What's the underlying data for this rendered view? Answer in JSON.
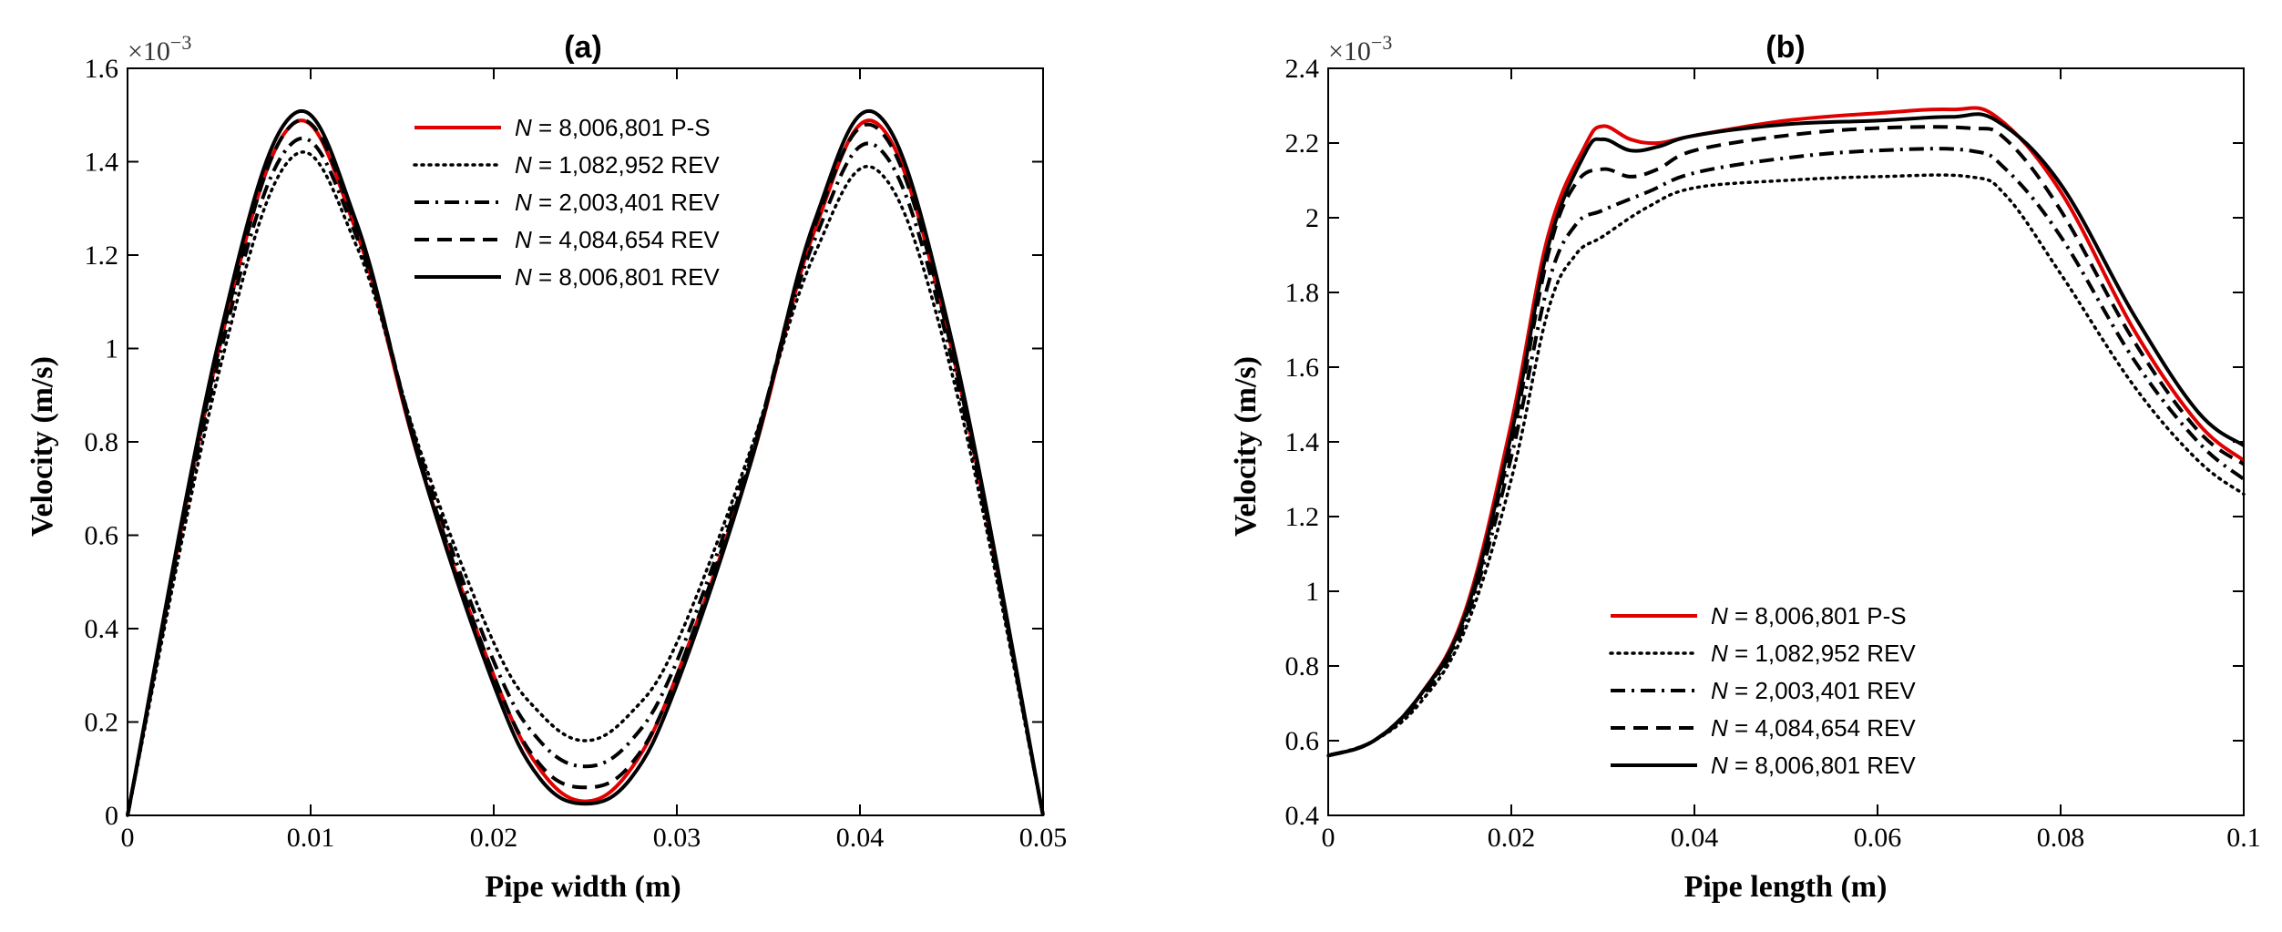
{
  "chart_data": [
    {
      "type": "line",
      "title": "(a)",
      "xlabel": "Pipe width (m)",
      "ylabel": "Velocity (m/s)",
      "y_multiplier": "×10",
      "y_multiplier_exp": "−3",
      "xlim": [
        0,
        0.05
      ],
      "ylim": [
        0,
        1.6
      ],
      "xticks": [
        0,
        0.01,
        0.02,
        0.03,
        0.04,
        0.05
      ],
      "xtick_labels": [
        "0",
        "0.01",
        "0.02",
        "0.03",
        "0.04",
        "0.05"
      ],
      "yticks": [
        0,
        0.2,
        0.4,
        0.6,
        0.8,
        1,
        1.2,
        1.4,
        1.6
      ],
      "ytick_labels": [
        "0",
        "0.2",
        "0.4",
        "0.6",
        "0.8",
        "1",
        "1.2",
        "1.4",
        "1.6"
      ],
      "legend_position": "top-center",
      "series": [
        {
          "name_italic": "N",
          "name_rest": " = 8,006,801 P-S",
          "color": "#e00000",
          "dash": "solid",
          "x": [
            0,
            0.005,
            0.009,
            0.0125,
            0.016,
            0.02,
            0.0225,
            0.025,
            0.0275,
            0.03,
            0.034,
            0.0375,
            0.041,
            0.045,
            0.05
          ],
          "y": [
            0,
            1.0,
            1.48,
            1.25,
            0.75,
            0.3,
            0.1,
            0.03,
            0.1,
            0.3,
            0.75,
            1.25,
            1.48,
            1.0,
            0
          ]
        },
        {
          "name_italic": "N",
          "name_rest": " = 1,082,952 REV",
          "color": "#000000",
          "dash": "dotted",
          "x": [
            0,
            0.005,
            0.009,
            0.0125,
            0.016,
            0.02,
            0.0225,
            0.025,
            0.0275,
            0.03,
            0.034,
            0.0375,
            0.041,
            0.045,
            0.05
          ],
          "y": [
            0,
            0.95,
            1.41,
            1.22,
            0.78,
            0.37,
            0.22,
            0.16,
            0.22,
            0.37,
            0.78,
            1.2,
            1.38,
            0.95,
            0
          ]
        },
        {
          "name_italic": "N",
          "name_rest": " = 2,003,401 REV",
          "color": "#000000",
          "dash": "dashdot",
          "x": [
            0,
            0.005,
            0.009,
            0.0125,
            0.016,
            0.02,
            0.0225,
            0.025,
            0.0275,
            0.03,
            0.034,
            0.0375,
            0.041,
            0.045,
            0.05
          ],
          "y": [
            0,
            0.98,
            1.44,
            1.24,
            0.77,
            0.33,
            0.16,
            0.105,
            0.16,
            0.33,
            0.77,
            1.23,
            1.43,
            0.98,
            0
          ]
        },
        {
          "name_italic": "N",
          "name_rest": " = 4,084,654 REV",
          "color": "#000000",
          "dash": "dashed",
          "x": [
            0,
            0.005,
            0.009,
            0.0125,
            0.016,
            0.02,
            0.0225,
            0.025,
            0.0275,
            0.03,
            0.034,
            0.0375,
            0.041,
            0.045,
            0.05
          ],
          "y": [
            0,
            1.0,
            1.48,
            1.26,
            0.76,
            0.3,
            0.11,
            0.06,
            0.11,
            0.3,
            0.76,
            1.26,
            1.47,
            1.0,
            0
          ]
        },
        {
          "name_italic": "N",
          "name_rest": " = 8,006,801 REV",
          "color": "#000000",
          "dash": "solid",
          "x": [
            0,
            0.005,
            0.009,
            0.0125,
            0.016,
            0.02,
            0.0225,
            0.025,
            0.0275,
            0.03,
            0.034,
            0.0375,
            0.041,
            0.045,
            0.05
          ],
          "y": [
            0,
            1.02,
            1.5,
            1.27,
            0.75,
            0.28,
            0.08,
            0.025,
            0.08,
            0.28,
            0.75,
            1.27,
            1.5,
            1.02,
            0
          ]
        }
      ]
    },
    {
      "type": "line",
      "title": "(b)",
      "xlabel": "Pipe length (m)",
      "ylabel": "Velocity (m/s)",
      "y_multiplier": "×10",
      "y_multiplier_exp": "−3",
      "xlim": [
        0,
        0.1
      ],
      "ylim": [
        0.4,
        2.4
      ],
      "xticks": [
        0,
        0.02,
        0.04,
        0.06,
        0.08,
        0.1
      ],
      "xtick_labels": [
        "0",
        "0.02",
        "0.04",
        "0.06",
        "0.08",
        "0.1"
      ],
      "yticks": [
        0.4,
        0.6,
        0.8,
        1,
        1.2,
        1.4,
        1.6,
        1.8,
        2,
        2.2,
        2.4
      ],
      "ytick_labels": [
        "0.4",
        "0.6",
        "0.8",
        "1",
        "1.2",
        "1.4",
        "1.6",
        "1.8",
        "2",
        "2.2",
        "2.4"
      ],
      "legend_position": "bottom-center",
      "series": [
        {
          "name_italic": "N",
          "name_rest": " = 8,006,801 P-S",
          "color": "#e00000",
          "dash": "solid",
          "x": [
            0,
            0.005,
            0.01,
            0.015,
            0.02,
            0.024,
            0.028,
            0.03,
            0.033,
            0.036,
            0.04,
            0.05,
            0.06,
            0.068,
            0.073,
            0.08,
            0.088,
            0.095,
            0.1
          ],
          "y": [
            0.56,
            0.6,
            0.72,
            0.95,
            1.45,
            1.95,
            2.19,
            2.245,
            2.21,
            2.2,
            2.22,
            2.26,
            2.28,
            2.29,
            2.27,
            2.07,
            1.7,
            1.45,
            1.35
          ]
        },
        {
          "name_italic": "N",
          "name_rest": " = 1,082,952 REV",
          "color": "#000000",
          "dash": "dotted",
          "x": [
            0,
            0.005,
            0.01,
            0.015,
            0.02,
            0.024,
            0.027,
            0.03,
            0.035,
            0.04,
            0.05,
            0.06,
            0.07,
            0.074,
            0.08,
            0.088,
            0.095,
            0.1
          ],
          "y": [
            0.56,
            0.6,
            0.7,
            0.9,
            1.3,
            1.75,
            1.9,
            1.95,
            2.03,
            2.08,
            2.1,
            2.11,
            2.11,
            2.06,
            1.85,
            1.55,
            1.35,
            1.26
          ]
        },
        {
          "name_italic": "N",
          "name_rest": " = 2,003,401 REV",
          "color": "#000000",
          "dash": "dashdot",
          "x": [
            0,
            0.005,
            0.01,
            0.015,
            0.02,
            0.024,
            0.027,
            0.03,
            0.035,
            0.04,
            0.05,
            0.06,
            0.07,
            0.074,
            0.08,
            0.088,
            0.095,
            0.1
          ],
          "y": [
            0.56,
            0.6,
            0.71,
            0.92,
            1.36,
            1.82,
            1.98,
            2.02,
            2.07,
            2.12,
            2.16,
            2.18,
            2.18,
            2.13,
            1.95,
            1.62,
            1.4,
            1.3
          ]
        },
        {
          "name_italic": "N",
          "name_rest": " = 4,084,654 REV",
          "color": "#000000",
          "dash": "dashed",
          "x": [
            0,
            0.005,
            0.01,
            0.015,
            0.02,
            0.024,
            0.027,
            0.03,
            0.033,
            0.036,
            0.04,
            0.05,
            0.06,
            0.07,
            0.074,
            0.08,
            0.088,
            0.095,
            0.1
          ],
          "y": [
            0.56,
            0.6,
            0.72,
            0.93,
            1.4,
            1.9,
            2.09,
            2.13,
            2.11,
            2.13,
            2.18,
            2.22,
            2.24,
            2.24,
            2.21,
            2.02,
            1.67,
            1.43,
            1.34
          ]
        },
        {
          "name_italic": "N",
          "name_rest": " = 8,006,801 REV",
          "color": "#000000",
          "dash": "solid",
          "x": [
            0,
            0.005,
            0.01,
            0.015,
            0.02,
            0.024,
            0.028,
            0.03,
            0.033,
            0.036,
            0.04,
            0.05,
            0.06,
            0.068,
            0.073,
            0.08,
            0.088,
            0.095,
            0.1
          ],
          "y": [
            0.56,
            0.6,
            0.72,
            0.94,
            1.42,
            1.92,
            2.17,
            2.21,
            2.18,
            2.19,
            2.22,
            2.25,
            2.26,
            2.27,
            2.26,
            2.09,
            1.74,
            1.48,
            1.39
          ]
        }
      ]
    }
  ]
}
